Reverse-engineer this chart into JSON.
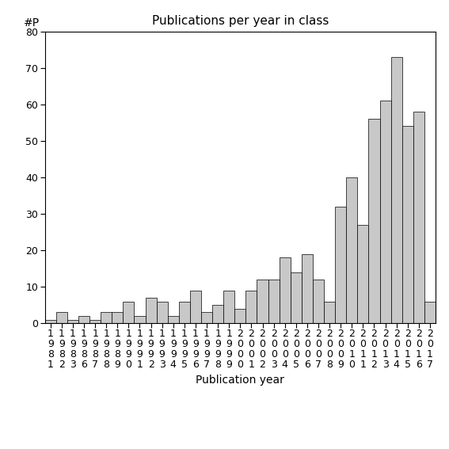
{
  "title": "Publications per year in class",
  "xlabel": "Publication year",
  "ylabel": "#P",
  "bar_color": "#c8c8c8",
  "bar_edge_color": "#000000",
  "background_color": "#ffffff",
  "ylim": [
    0,
    80
  ],
  "yticks": [
    0,
    10,
    20,
    30,
    40,
    50,
    60,
    70,
    80
  ],
  "years": [
    1981,
    1982,
    1983,
    1986,
    1987,
    1988,
    1989,
    1990,
    1991,
    1992,
    1993,
    1994,
    1995,
    1996,
    1997,
    1998,
    1999,
    2000,
    2001,
    2002,
    2003,
    2004,
    2005,
    2006,
    2007,
    2008,
    2009,
    2010,
    2011,
    2012,
    2013,
    2014,
    2015,
    2016,
    2017
  ],
  "values": [
    1,
    3,
    1,
    2,
    1,
    3,
    3,
    6,
    2,
    7,
    6,
    2,
    6,
    9,
    3,
    5,
    9,
    4,
    9,
    12,
    12,
    18,
    14,
    19,
    12,
    6,
    32,
    40,
    27,
    56,
    61,
    73,
    54,
    58,
    6
  ],
  "title_fontsize": 11,
  "label_fontsize": 10,
  "tick_fontsize": 9
}
